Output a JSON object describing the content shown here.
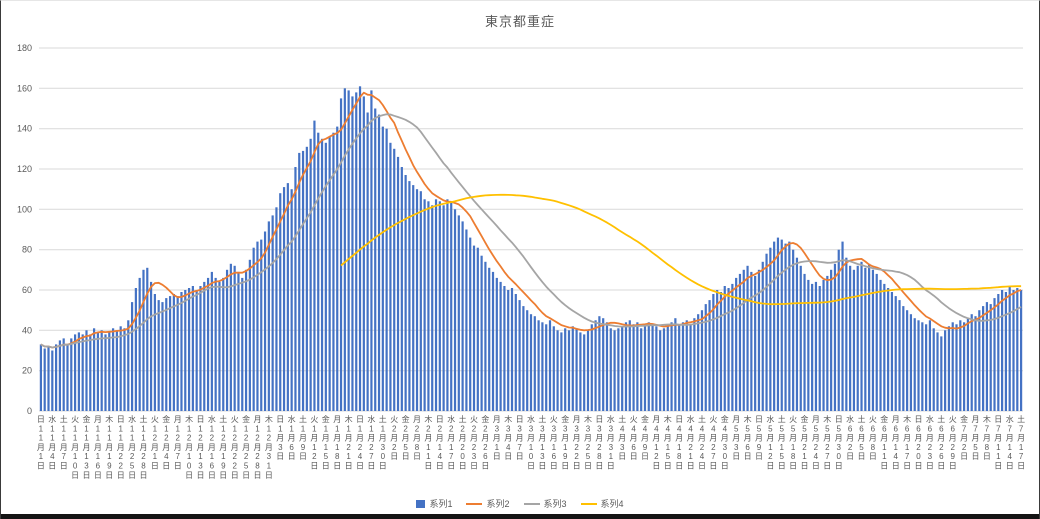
{
  "chart_data": {
    "type": "bar",
    "title": "東京都重症",
    "y_axis": {
      "min": 0,
      "max": 180,
      "step": 20,
      "tick_labels": [
        0,
        20,
        40,
        60,
        80,
        100,
        120,
        140,
        160,
        180
      ]
    },
    "x_tick_interval": 3,
    "x_tick_labels": [
      "日11月1日",
      "水11月4日",
      "土11月7日",
      "火11月10日",
      "金11月13日",
      "月11月16日",
      "木11月19日",
      "日11月22日",
      "水11月25日",
      "土11月28日",
      "火12月1日",
      "金12月4日",
      "月12月7日",
      "木12月10日",
      "日12月13日",
      "水12月16日",
      "土12月19日",
      "火12月22日",
      "金12月25日",
      "月12月28日",
      "木12月31日",
      "日1月3日",
      "水1月6日",
      "土1月9日",
      "火1月12日",
      "金1月15日",
      "月1月18日",
      "木1月21日",
      "日1月24日",
      "水1月27日",
      "土1月30日",
      "火2月2日",
      "金2月5日",
      "月2月8日",
      "木2月11日",
      "日2月14日",
      "水2月17日",
      "土2月20日",
      "火2月23日",
      "金2月26日",
      "月3月1日",
      "木3月4日",
      "日3月7日",
      "水3月10日",
      "土3月13日",
      "火3月16日",
      "金3月19日",
      "月3月22日",
      "木3月25日",
      "日3月28日",
      "水3月31日",
      "土4月3日",
      "火4月6日",
      "金4月9日",
      "月4月12日",
      "木4月15日",
      "日4月18日",
      "水4月21日",
      "土4月24日",
      "火4月27日",
      "金4月30日",
      "月5月3日",
      "木5月6日",
      "日5月9日",
      "水5月12日",
      "土5月15日",
      "火5月18日",
      "金5月21日",
      "月5月24日",
      "木5月27日",
      "日5月30日",
      "水6月2日",
      "土6月5日",
      "火6月8日",
      "金6月11日",
      "月6月14日",
      "木6月17日",
      "日6月20日",
      "水6月23日",
      "土6月26日",
      "火6月29日",
      "金7月2日",
      "月7月5日",
      "木7月8日",
      "日7月11日",
      "水7月14日",
      "土7月17日"
    ],
    "colors": {
      "gridline": "#d9d9d9",
      "axis_text": "#595959",
      "title_text": "#595959"
    },
    "series": [
      {
        "name": "系列1",
        "type": "bar",
        "color": "#4472c4",
        "values": [
          33,
          31,
          32,
          30,
          33,
          35,
          36,
          33,
          36,
          38,
          39,
          38,
          40,
          38,
          41,
          39,
          40,
          38,
          39,
          41,
          40,
          42,
          41,
          45,
          54,
          61,
          66,
          70,
          71,
          64,
          58,
          55,
          54,
          56,
          57,
          58,
          57,
          59,
          60,
          61,
          62,
          60,
          62,
          64,
          66,
          69,
          66,
          64,
          66,
          70,
          73,
          72,
          69,
          66,
          70,
          75,
          81,
          84,
          85,
          89,
          94,
          97,
          101,
          108,
          111,
          113,
          110,
          121,
          128,
          129,
          131,
          135,
          144,
          138,
          135,
          133,
          136,
          138,
          141,
          155,
          160,
          159,
          156,
          158,
          161,
          156,
          148,
          159,
          150,
          147,
          141,
          140,
          133,
          130,
          126,
          121,
          117,
          114,
          112,
          110,
          109,
          105,
          104,
          102,
          105,
          104,
          102,
          105,
          104,
          100,
          97,
          94,
          90,
          86,
          82,
          81,
          77,
          74,
          71,
          69,
          66,
          64,
          62,
          60,
          61,
          58,
          55,
          52,
          50,
          48,
          47,
          45,
          44,
          43,
          45,
          42,
          40,
          39,
          41,
          40,
          42,
          41,
          39,
          38,
          40,
          43,
          45,
          47,
          46,
          44,
          41,
          40,
          41,
          42,
          44,
          45,
          43,
          44,
          41,
          42,
          44,
          43,
          42,
          40,
          41,
          43,
          44,
          46,
          43,
          44,
          45,
          43,
          46,
          48,
          50,
          53,
          55,
          58,
          60,
          59,
          62,
          61,
          63,
          66,
          68,
          70,
          72,
          69,
          67,
          70,
          74,
          78,
          81,
          84,
          86,
          85,
          83,
          84,
          80,
          76,
          72,
          68,
          65,
          63,
          64,
          62,
          65,
          67,
          70,
          73,
          80,
          84,
          76,
          72,
          70,
          72,
          74,
          71,
          73,
          70,
          68,
          65,
          63,
          61,
          59,
          57,
          55,
          52,
          50,
          48,
          46,
          45,
          44,
          43,
          45,
          41,
          39,
          37,
          40,
          42,
          44,
          43,
          45,
          44,
          46,
          48,
          47,
          50,
          52,
          54,
          53,
          56,
          58,
          60,
          59,
          62,
          60,
          61,
          60
        ]
      },
      {
        "name": "系列2",
        "type": "line",
        "color": "#ed7d31",
        "derived_from": "系列1",
        "derivation": "moving_average",
        "window": 7,
        "full_window_only": false
      },
      {
        "name": "系列3",
        "type": "line",
        "color": "#a5a5a5",
        "derived_from": "系列1",
        "derivation": "moving_average",
        "window": 21,
        "full_window_only": false
      },
      {
        "name": "系列4",
        "type": "line",
        "color": "#ffc000",
        "derived_from": "系列1",
        "derivation": "moving_average",
        "window": 80,
        "full_window_only": true
      }
    ],
    "legend": [
      "系列1",
      "系列2",
      "系列3",
      "系列4"
    ]
  }
}
